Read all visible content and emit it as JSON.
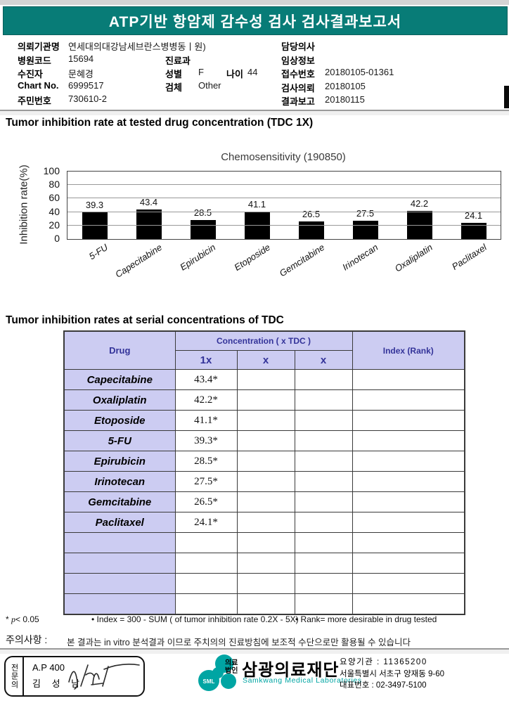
{
  "header": {
    "title": "ATP기반 항암제 감수성 검사 검사결과보고서"
  },
  "patient_info": {
    "requesting_org": {
      "label": "의뢰기관명",
      "value": "연세대의대강남세브란스병병동ㅣ원)"
    },
    "hospital_code": {
      "label": "병원코드",
      "value": "15694"
    },
    "patient": {
      "label": "수진자",
      "value": "문혜경"
    },
    "chart_no": {
      "label": "Chart No.",
      "value": "6999517"
    },
    "resident_no": {
      "label": "주민번호",
      "value": "730610-2"
    },
    "department": {
      "label": "진료과",
      "value": ""
    },
    "sex": {
      "label": "성별",
      "value": "F"
    },
    "age": {
      "label": "나이",
      "value": "44"
    },
    "specimen": {
      "label": "검체",
      "value": "Other"
    },
    "doctor": {
      "label": "담당의사",
      "value": ""
    },
    "clinical_info": {
      "label": "임상정보",
      "value": ""
    },
    "receipt_no": {
      "label": "접수번호",
      "value": "20180105-01361"
    },
    "test_request": {
      "label": "검사의뢰",
      "value": "20180105"
    },
    "result_report": {
      "label": "결과보고",
      "value": "20180115"
    }
  },
  "sections": {
    "tdc_title": "Tumor inhibition rate at tested drug concentration (TDC 1X)",
    "serial_title": "Tumor inhibition rates at serial concentrations of TDC"
  },
  "chart_data": {
    "type": "bar",
    "title": "Chemosensitivity (190850)",
    "xlabel": "",
    "ylabel": "Inhibition rate(%)",
    "categories": [
      "5-FU",
      "Capecitabine",
      "Epirubicin",
      "Etoposide",
      "Gemcitabine",
      "Irinotecan",
      "Oxaliplatin",
      "Paclitaxel"
    ],
    "values": [
      39.3,
      43.4,
      28.5,
      41.1,
      26.5,
      27.5,
      42.2,
      24.1
    ],
    "ylim": [
      0,
      100
    ],
    "yticks": [
      0,
      20,
      40,
      60,
      80,
      100
    ],
    "grid": true,
    "legend": false,
    "bar_color": "#000000"
  },
  "table": {
    "header": {
      "drug": "Drug",
      "concentration": "Concentration ( x TDC )",
      "sub": [
        "1x",
        "x",
        "x"
      ],
      "index": "Index (Rank)"
    },
    "rows": [
      {
        "drug": "Capecitabine",
        "values": [
          "43.4*",
          "",
          ""
        ],
        "index": ""
      },
      {
        "drug": "Oxaliplatin",
        "values": [
          "42.2*",
          "",
          ""
        ],
        "index": ""
      },
      {
        "drug": "Etoposide",
        "values": [
          "41.1*",
          "",
          ""
        ],
        "index": ""
      },
      {
        "drug": "5-FU",
        "values": [
          "39.3*",
          "",
          ""
        ],
        "index": ""
      },
      {
        "drug": "Epirubicin",
        "values": [
          "28.5*",
          "",
          ""
        ],
        "index": ""
      },
      {
        "drug": "Irinotecan",
        "values": [
          "27.5*",
          "",
          ""
        ],
        "index": ""
      },
      {
        "drug": "Gemcitabine",
        "values": [
          "26.5*",
          "",
          ""
        ],
        "index": ""
      },
      {
        "drug": "Paclitaxel",
        "values": [
          "24.1*",
          "",
          ""
        ],
        "index": ""
      },
      {
        "drug": "",
        "values": [
          "",
          "",
          ""
        ],
        "index": ""
      },
      {
        "drug": "",
        "values": [
          "",
          "",
          ""
        ],
        "index": ""
      },
      {
        "drug": "",
        "values": [
          "",
          "",
          ""
        ],
        "index": ""
      },
      {
        "drug": "",
        "values": [
          "",
          "",
          ""
        ],
        "index": ""
      }
    ]
  },
  "footnotes": {
    "p_star": "*",
    "p_symbol": "p",
    "p_rest": "< 0.05",
    "index_note": "• Index = 300 - SUM ( of tumor inhibition rate 0.2X  -  5X)",
    "rank_note": "• Rank= more desirable in drug tested"
  },
  "caution": {
    "label": "주의사항 :",
    "text": "본 결과는 in vitro 분석결과 이므로 주치의의 진료방침에 보조적 수단으로만 활용될 수 있습니다"
  },
  "footer": {
    "stamp": {
      "side": "전문의",
      "code": "A.P 400",
      "name": "김 성 남"
    },
    "logo": {
      "mark": "SML",
      "corp_line1": "의료",
      "corp_line2": "법인",
      "name": "삼광의료재단",
      "eng": "Samkwang Medical Laboratories"
    },
    "contact": {
      "line1": "요양기관 : 11365200",
      "line2": "서울특별시 서초구 양재동 9-60",
      "line3": "대표번호 : 02-3497-5100"
    }
  },
  "colors": {
    "banner_teal": "#087c77",
    "logo_teal": "#00a5a3",
    "table_header_bg": "#ccccf2",
    "table_header_text": "#333399",
    "bar_color": "#000000"
  }
}
